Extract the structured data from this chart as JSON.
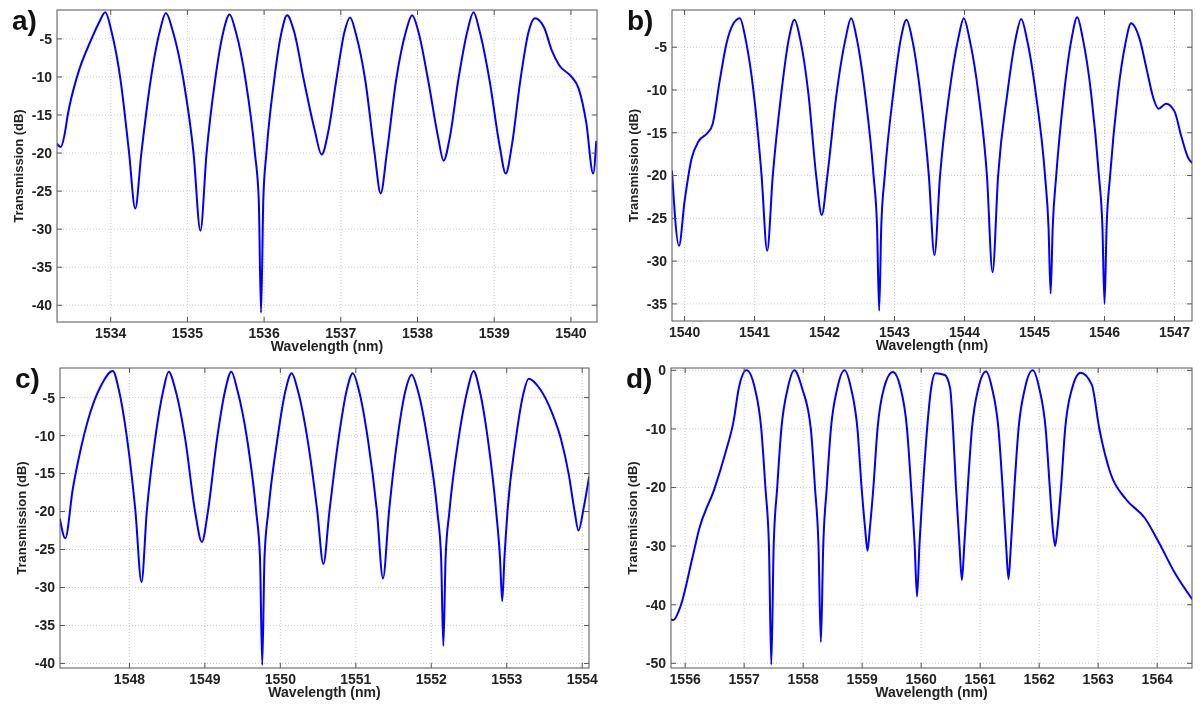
{
  "chart_data": [
    {
      "type": "line",
      "title": "a)",
      "xlabel": "Wavelength (nm)",
      "ylabel": "Transmission (dB)",
      "color": "#0000ff",
      "grid": true,
      "xlim": [
        1533.3,
        1540.34
      ],
      "ylim": [
        -42.2,
        -1.2
      ],
      "xticks": [
        1534,
        1535,
        1536,
        1537,
        1538,
        1539,
        1540
      ],
      "yticks": [
        -40,
        -35,
        -30,
        -25,
        -20,
        -15,
        -10,
        -5
      ],
      "x": [
        1533.3,
        1533.35,
        1533.4,
        1533.44,
        1533.56,
        1533.75,
        1533.85,
        1533.93,
        1534.01,
        1534.13,
        1534.24,
        1534.32,
        1534.4,
        1534.52,
        1534.64,
        1534.72,
        1534.81,
        1534.95,
        1535.08,
        1535.17,
        1535.25,
        1535.36,
        1535.47,
        1535.55,
        1535.63,
        1535.76,
        1535.88,
        1535.93,
        1535.96,
        1535.99,
        1536.03,
        1536.13,
        1536.23,
        1536.3,
        1536.39,
        1536.52,
        1536.66,
        1536.75,
        1536.84,
        1536.94,
        1537.05,
        1537.12,
        1537.2,
        1537.32,
        1537.44,
        1537.52,
        1537.6,
        1537.72,
        1537.85,
        1537.93,
        1538.01,
        1538.14,
        1538.27,
        1538.34,
        1538.42,
        1538.53,
        1538.65,
        1538.73,
        1538.81,
        1538.94,
        1539.07,
        1539.15,
        1539.23,
        1539.34,
        1539.45,
        1539.53,
        1539.65,
        1539.75,
        1539.85,
        1540.0,
        1540.1,
        1540.2,
        1540.29,
        1540.33
      ],
      "values": [
        -18.8,
        -19.2,
        -17.5,
        -15,
        -10,
        -5,
        -2.8,
        -1.5,
        -4,
        -10.5,
        -20,
        -27.3,
        -20,
        -10.5,
        -4,
        -1.6,
        -4,
        -10.5,
        -20,
        -30.2,
        -20,
        -10.5,
        -4,
        -1.8,
        -4,
        -10.5,
        -20,
        -26,
        -41,
        -26,
        -20,
        -10.5,
        -4,
        -1.9,
        -4,
        -10.5,
        -17,
        -20.2,
        -17,
        -10.5,
        -4,
        -2.2,
        -4.5,
        -10.5,
        -20,
        -25.3,
        -20,
        -10.5,
        -4,
        -1.9,
        -4,
        -10.5,
        -18,
        -21,
        -18,
        -10.5,
        -4,
        -1.5,
        -4,
        -10.5,
        -19,
        -22.7,
        -19,
        -10.5,
        -4,
        -2.3,
        -3.5,
        -6.5,
        -8.5,
        -9.9,
        -11.5,
        -16,
        -22.7,
        -18.5
      ]
    },
    {
      "type": "line",
      "title": "b)",
      "xlabel": "Wavelength (nm)",
      "ylabel": "Transmission (dB)",
      "color": "#0000ff",
      "grid": true,
      "xlim": [
        1539.82,
        1547.25
      ],
      "ylim": [
        -37,
        -0.65
      ],
      "xticks": [
        1540,
        1541,
        1542,
        1543,
        1544,
        1545,
        1546,
        1547
      ],
      "yticks": [
        -35,
        -30,
        -25,
        -20,
        -15,
        -10,
        -5
      ],
      "x": [
        1539.82,
        1539.92,
        1540.0,
        1540.1,
        1540.2,
        1540.33,
        1540.4,
        1540.5,
        1540.6,
        1540.7,
        1540.79,
        1540.87,
        1540.99,
        1541.1,
        1541.18,
        1541.26,
        1541.38,
        1541.49,
        1541.57,
        1541.65,
        1541.77,
        1541.88,
        1541.96,
        1542.04,
        1542.17,
        1542.3,
        1542.38,
        1542.46,
        1542.58,
        1542.7,
        1542.75,
        1542.78,
        1542.81,
        1542.86,
        1542.98,
        1543.09,
        1543.17,
        1543.25,
        1543.37,
        1543.49,
        1543.57,
        1543.65,
        1543.78,
        1543.91,
        1543.99,
        1544.07,
        1544.2,
        1544.32,
        1544.4,
        1544.48,
        1544.61,
        1544.73,
        1544.81,
        1544.89,
        1545.02,
        1545.15,
        1545.2,
        1545.23,
        1545.26,
        1545.31,
        1545.42,
        1545.53,
        1545.61,
        1545.69,
        1545.81,
        1545.92,
        1545.97,
        1546.0,
        1546.03,
        1546.08,
        1546.19,
        1546.3,
        1546.38,
        1546.5,
        1546.6,
        1546.7,
        1546.77,
        1546.88,
        1547.0,
        1547.1,
        1547.2,
        1547.25
      ],
      "values": [
        -19.5,
        -28.2,
        -23,
        -18,
        -16,
        -15,
        -14,
        -9,
        -4.5,
        -2.2,
        -1.6,
        -4,
        -10.5,
        -20,
        -28.8,
        -20,
        -10.5,
        -4,
        -1.8,
        -4,
        -10.5,
        -20,
        -24.6,
        -20,
        -10.5,
        -4,
        -1.6,
        -4,
        -10.5,
        -20,
        -26,
        -35.8,
        -26,
        -20,
        -10.5,
        -4,
        -1.8,
        -4,
        -10.5,
        -20,
        -29.3,
        -20,
        -10.5,
        -4,
        -1.6,
        -4,
        -10.5,
        -20,
        -31.3,
        -20,
        -10.5,
        -4,
        -1.7,
        -4,
        -10.5,
        -20,
        -26,
        -33.8,
        -26,
        -20,
        -10.5,
        -4,
        -1.5,
        -4,
        -10.5,
        -20,
        -26,
        -35,
        -26,
        -20,
        -10.5,
        -4.5,
        -2.2,
        -4,
        -7.5,
        -11,
        -12.2,
        -11.6,
        -12.5,
        -15.5,
        -18,
        -18.5
      ]
    },
    {
      "type": "line",
      "title": "c)",
      "xlabel": "Wavelength (nm)",
      "ylabel": "Transmission (dB)",
      "color": "#0000ff",
      "grid": true,
      "xlim": [
        1547.08,
        1554.09
      ],
      "ylim": [
        -40.6,
        -1.1
      ],
      "xticks": [
        1548,
        1549,
        1550,
        1551,
        1552,
        1553,
        1554
      ],
      "yticks": [
        -40,
        -35,
        -30,
        -25,
        -20,
        -15,
        -10,
        -5
      ],
      "x": [
        1547.08,
        1547.15,
        1547.25,
        1547.35,
        1547.48,
        1547.62,
        1547.78,
        1547.86,
        1547.97,
        1548.08,
        1548.16,
        1548.23,
        1548.34,
        1548.45,
        1548.52,
        1548.61,
        1548.74,
        1548.87,
        1548.96,
        1549.04,
        1549.16,
        1549.27,
        1549.35,
        1549.43,
        1549.56,
        1549.68,
        1549.73,
        1549.76,
        1549.79,
        1549.84,
        1549.96,
        1550.07,
        1550.15,
        1550.23,
        1550.36,
        1550.49,
        1550.57,
        1550.65,
        1550.77,
        1550.88,
        1550.96,
        1551.04,
        1551.16,
        1551.28,
        1551.36,
        1551.44,
        1551.55,
        1551.66,
        1551.74,
        1551.82,
        1551.95,
        1552.08,
        1552.13,
        1552.16,
        1552.19,
        1552.24,
        1552.36,
        1552.48,
        1552.56,
        1552.64,
        1552.75,
        1552.86,
        1552.91,
        1552.94,
        1552.97,
        1553.01,
        1553.12,
        1553.22,
        1553.29,
        1553.45,
        1553.6,
        1553.72,
        1553.82,
        1553.9,
        1553.95,
        1554.02,
        1554.09
      ],
      "values": [
        -21,
        -23.5,
        -17,
        -12,
        -7,
        -3.5,
        -1.5,
        -4,
        -10.5,
        -20,
        -29.3,
        -20,
        -10.5,
        -4,
        -1.6,
        -4,
        -10.5,
        -20,
        -24,
        -20,
        -10.5,
        -4,
        -1.6,
        -4,
        -10.5,
        -20,
        -26,
        -40.2,
        -26,
        -20,
        -10.5,
        -4,
        -1.8,
        -4,
        -10.5,
        -20,
        -26.9,
        -20,
        -10.5,
        -4,
        -1.8,
        -4,
        -10.5,
        -20,
        -28.8,
        -20,
        -10.5,
        -4,
        -2,
        -4,
        -10.5,
        -20,
        -26,
        -37.7,
        -26,
        -20,
        -10.5,
        -4,
        -1.5,
        -4,
        -10.5,
        -20,
        -26,
        -31.8,
        -26,
        -20,
        -10.5,
        -4.5,
        -2.5,
        -4,
        -7,
        -10.5,
        -15,
        -20,
        -22.5,
        -19.5,
        -15.5
      ]
    },
    {
      "type": "line",
      "title": "d)",
      "xlabel": "Wavelength (nm)",
      "ylabel": "Transmission (dB)",
      "color": "#0000ff",
      "grid": true,
      "xlim": [
        1555.76,
        1564.59
      ],
      "ylim": [
        -50.8,
        0.4
      ],
      "xticks": [
        1556,
        1557,
        1558,
        1559,
        1560,
        1561,
        1562,
        1563,
        1564
      ],
      "yticks": [
        -50,
        -40,
        -30,
        -20,
        -10,
        0
      ],
      "x": [
        1555.76,
        1555.8,
        1555.92,
        1556.12,
        1556.24,
        1556.5,
        1556.69,
        1556.82,
        1556.91,
        1557.04,
        1557.18,
        1557.29,
        1557.36,
        1557.42,
        1557.46,
        1557.5,
        1557.56,
        1557.63,
        1557.74,
        1557.85,
        1557.98,
        1558.13,
        1558.2,
        1558.26,
        1558.3,
        1558.34,
        1558.4,
        1558.47,
        1558.58,
        1558.7,
        1558.81,
        1558.92,
        1558.99,
        1559.05,
        1559.09,
        1559.13,
        1559.19,
        1559.26,
        1559.37,
        1559.52,
        1559.65,
        1559.76,
        1559.83,
        1559.89,
        1559.93,
        1559.97,
        1560.03,
        1560.1,
        1560.17,
        1560.24,
        1560.4,
        1560.49,
        1560.54,
        1560.59,
        1560.65,
        1560.69,
        1560.73,
        1560.79,
        1560.86,
        1560.97,
        1561.1,
        1561.2,
        1561.31,
        1561.38,
        1561.44,
        1561.48,
        1561.52,
        1561.58,
        1561.65,
        1561.76,
        1561.89,
        1562.0,
        1562.11,
        1562.18,
        1562.23,
        1562.27,
        1562.31,
        1562.37,
        1562.44,
        1562.56,
        1562.7,
        1562.89,
        1563.02,
        1563.21,
        1563.47,
        1563.79,
        1564.04,
        1564.3,
        1564.59
      ],
      "values": [
        -42.5,
        -42.6,
        -40.3,
        -32.1,
        -27,
        -20.1,
        -13.8,
        -8.7,
        -3,
        0,
        -3,
        -10,
        -20,
        -30,
        -50.2,
        -30,
        -20,
        -10,
        -3,
        0,
        -3,
        -10,
        -20,
        -30,
        -46.4,
        -30,
        -20,
        -10,
        -3,
        0,
        -3,
        -10,
        -20,
        -27,
        -30.8,
        -27,
        -20,
        -10,
        -3,
        -0.3,
        -3,
        -10,
        -20,
        -30,
        -38.6,
        -30,
        -20,
        -10,
        -3,
        -0.5,
        -0.8,
        -3,
        -10,
        -20,
        -30,
        -35.8,
        -30,
        -20,
        -10,
        -3,
        -0.2,
        -3,
        -10,
        -20,
        -30,
        -35.6,
        -30,
        -20,
        -10,
        -3,
        0,
        -3,
        -10,
        -20,
        -27,
        -30,
        -27,
        -20,
        -10,
        -3,
        -0.4,
        -2.4,
        -10,
        -17.6,
        -22,
        -25.2,
        -29.6,
        -34.6,
        -39
      ]
    }
  ]
}
